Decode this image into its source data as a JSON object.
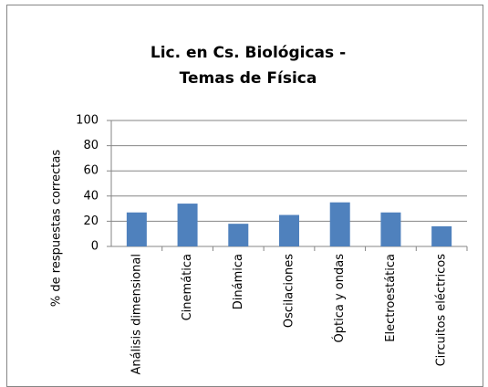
{
  "chart_data": {
    "type": "bar",
    "title": [
      "Lic. en Cs. Biológicas -",
      "Temas de Física"
    ],
    "y_axis_label": "% de respuestas correctas",
    "categories": [
      "Análisis dimensional",
      "Cinemática",
      "Dinámica",
      "Oscilaciones",
      "Óptica y ondas",
      "Electroestática",
      "Circuitos eléctricos"
    ],
    "values": [
      27,
      34,
      18,
      25,
      35,
      27,
      16
    ],
    "color": "#4f81bd",
    "ylim": [
      0,
      100
    ],
    "yticks": [
      0,
      20,
      40,
      60,
      80,
      100
    ],
    "grid": true
  }
}
